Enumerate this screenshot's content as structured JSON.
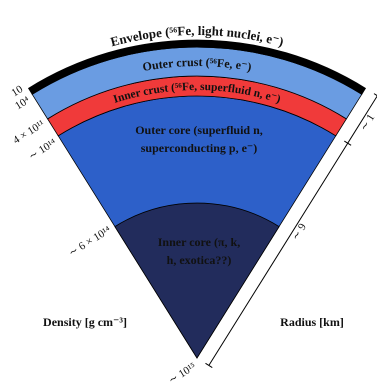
{
  "layers": [
    {
      "label": "Envelope (⁵⁶Fe, light nuclei, e⁻)"
    },
    {
      "label": "Outer crust (⁵⁶Fe, e⁻)"
    },
    {
      "label": "Inner crust (⁵⁶Fe, superfluid n, e⁻)"
    },
    {
      "lines": [
        "Outer core (superfluid n,",
        "superconducting p, e⁻)"
      ]
    },
    {
      "lines": [
        "Inner core (π, k,",
        "h, exotica??)"
      ]
    }
  ],
  "density_axis": {
    "title": "Density [g cm⁻³]",
    "ticks": [
      "10",
      "10⁴",
      "4 × 10¹¹",
      "∼ 10¹⁴",
      "∼ 6 × 10¹⁴",
      "∼ 10¹⁵"
    ]
  },
  "radius_axis": {
    "title": "Radius [km]",
    "labels": [
      "∼ 1",
      "∼ 9"
    ]
  }
}
